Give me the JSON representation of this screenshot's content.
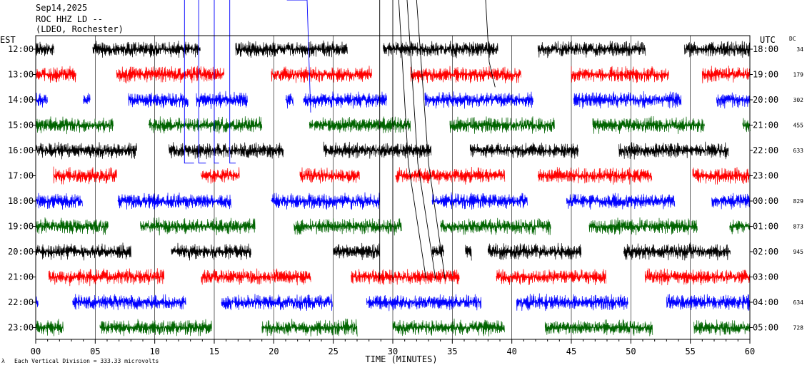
{
  "chart_data": {
    "type": "line",
    "title_lines": [
      "Sep14,2025",
      "ROC HHZ LD --",
      "(LDEO, Rochester)"
    ],
    "left_axis_title": "EST",
    "right_axis_title": "UTC",
    "dc_title": "DC",
    "xlabel": "TIME (MINUTES)",
    "xlim": [
      0,
      60
    ],
    "xticks": [
      "00",
      "05",
      "10",
      "15",
      "20",
      "25",
      "30",
      "35",
      "40",
      "45",
      "50",
      "55",
      "60"
    ],
    "footer": "Each Vertical Division =  333.33 microvolts",
    "grid": "vertical lines every 5 minutes",
    "trace_colors": [
      "#000000",
      "#ff0000",
      "#0000ff",
      "#006400"
    ],
    "rows": [
      {
        "est": "12:00",
        "utc": "18:00",
        "dc": "34"
      },
      {
        "est": "13:00",
        "utc": "19:00",
        "dc": "179"
      },
      {
        "est": "14:00",
        "utc": "20:00",
        "dc": "302"
      },
      {
        "est": "15:00",
        "utc": "21:00",
        "dc": "455"
      },
      {
        "est": "16:00",
        "utc": "22:00",
        "dc": "633"
      },
      {
        "est": "17:00",
        "utc": "23:00",
        "dc": ""
      },
      {
        "est": "18:00",
        "utc": "00:00",
        "dc": "829"
      },
      {
        "est": "19:00",
        "utc": "01:00",
        "dc": "873"
      },
      {
        "est": "20:00",
        "utc": "02:00",
        "dc": "945"
      },
      {
        "est": "21:00",
        "utc": "03:00",
        "dc": ""
      },
      {
        "est": "22:00",
        "utc": "04:00",
        "dc": "634"
      },
      {
        "est": "23:00",
        "utc": "05:00",
        "dc": "728"
      }
    ],
    "segments": [
      [
        [
          0,
          1.5
        ],
        [
          4.8,
          13.8
        ],
        [
          16.8,
          26.2
        ],
        [
          29.2,
          38.8
        ],
        [
          42.2,
          51.2
        ],
        [
          54.5,
          60
        ]
      ],
      [
        [
          0,
          3.4
        ],
        [
          6.8,
          15.8
        ],
        [
          19.8,
          28.2
        ],
        [
          31.5,
          40.8
        ],
        [
          45,
          53.2
        ],
        [
          56,
          60
        ]
      ],
      [
        [
          0,
          1.0
        ],
        [
          4.0,
          4.6
        ],
        [
          7.8,
          12.8
        ],
        [
          13.5,
          17.8
        ],
        [
          21.0,
          21.6
        ],
        [
          22.5,
          29.5
        ],
        [
          32.7,
          41.8
        ],
        [
          45.2,
          54.2
        ],
        [
          57.2,
          60
        ]
      ],
      [
        [
          0,
          6.5
        ],
        [
          9.5,
          19.0
        ],
        [
          23.0,
          31.5
        ],
        [
          34.8,
          43.6
        ],
        [
          46.8,
          56.2
        ],
        [
          59.4,
          60
        ]
      ],
      [
        [
          0,
          8.5
        ],
        [
          11.2,
          20.8
        ],
        [
          24.2,
          33.2
        ],
        [
          36.5,
          45.6
        ],
        [
          49.0,
          58.2
        ]
      ],
      [
        [
          1.5,
          6.8
        ],
        [
          13.9,
          17.1
        ],
        [
          22.2,
          27.2
        ],
        [
          30.2,
          39.4
        ],
        [
          42.2,
          51.8
        ],
        [
          55.2,
          60
        ]
      ],
      [
        [
          0,
          3.9
        ],
        [
          6.9,
          16.4
        ],
        [
          19.8,
          28.9
        ],
        [
          33.3,
          41.3
        ],
        [
          44.6,
          53.7
        ],
        [
          56.8,
          60
        ]
      ],
      [
        [
          0,
          6.1
        ],
        [
          8.8,
          18.4
        ],
        [
          21.7,
          30.7
        ],
        [
          34.0,
          43.3
        ],
        [
          46.5,
          55.6
        ],
        [
          58.3,
          60
        ]
      ],
      [
        [
          0,
          8.0
        ],
        [
          11.4,
          18.1
        ],
        [
          25.0,
          28.9
        ],
        [
          33.3,
          34.3
        ],
        [
          36.1,
          36.6
        ],
        [
          38.0,
          45.8
        ],
        [
          49.4,
          58.4
        ]
      ],
      [
        [
          1.1,
          10.8
        ],
        [
          13.9,
          23.1
        ],
        [
          26.5,
          35.6
        ],
        [
          38.7,
          47.9
        ],
        [
          51.2,
          60
        ]
      ],
      [
        [
          0,
          0.2
        ],
        [
          3.1,
          12.6
        ],
        [
          15.6,
          24.9
        ],
        [
          27.8,
          37.4
        ],
        [
          40.4,
          49.8
        ],
        [
          53.0,
          60
        ]
      ],
      [
        [
          0,
          2.3
        ],
        [
          5.4,
          14.8
        ],
        [
          19.0,
          27.0
        ],
        [
          30.0,
          39.4
        ],
        [
          42.8,
          51.8
        ],
        [
          55.3,
          60
        ]
      ]
    ],
    "event_lines": [
      {
        "color": "#0000ff",
        "points": [
          [
            12.5,
            0
          ],
          [
            12.5,
            4.5
          ],
          [
            13.3,
            4.5
          ]
        ]
      },
      {
        "color": "#0000ff",
        "points": [
          [
            13.7,
            0
          ],
          [
            13.7,
            4.5
          ],
          [
            14.3,
            4.5
          ]
        ]
      },
      {
        "color": "#0000ff",
        "points": [
          [
            15.0,
            0
          ],
          [
            15.0,
            4.5
          ],
          [
            15.4,
            4.5
          ]
        ]
      },
      {
        "color": "#0000ff",
        "points": [
          [
            16.3,
            0
          ],
          [
            16.3,
            4.5
          ],
          [
            16.8,
            4.5
          ]
        ]
      },
      {
        "color": "#0000ff",
        "points": [
          [
            21.1,
            0
          ],
          [
            22.8,
            0
          ],
          [
            23.1,
            2.5
          ]
        ]
      },
      {
        "color": "#000000",
        "points": [
          [
            28.9,
            0
          ],
          [
            28.9,
            9.1
          ]
        ]
      },
      {
        "color": "#000000",
        "points": [
          [
            30.0,
            0
          ],
          [
            30.0,
            9.1
          ]
        ]
      },
      {
        "color": "#000000",
        "points": [
          [
            30.5,
            0
          ],
          [
            31.3,
            4.5
          ],
          [
            32.8,
            9.1
          ]
        ]
      },
      {
        "color": "#000000",
        "points": [
          [
            31.2,
            0
          ],
          [
            32.1,
            4.5
          ],
          [
            33.6,
            9.1
          ]
        ]
      },
      {
        "color": "#000000",
        "points": [
          [
            32.0,
            0
          ],
          [
            33.0,
            4.5
          ],
          [
            34.4,
            9.1
          ]
        ]
      },
      {
        "color": "#000000",
        "points": [
          [
            37.8,
            0
          ],
          [
            38.1,
            0.5
          ],
          [
            38.6,
            1.5
          ]
        ]
      }
    ]
  }
}
